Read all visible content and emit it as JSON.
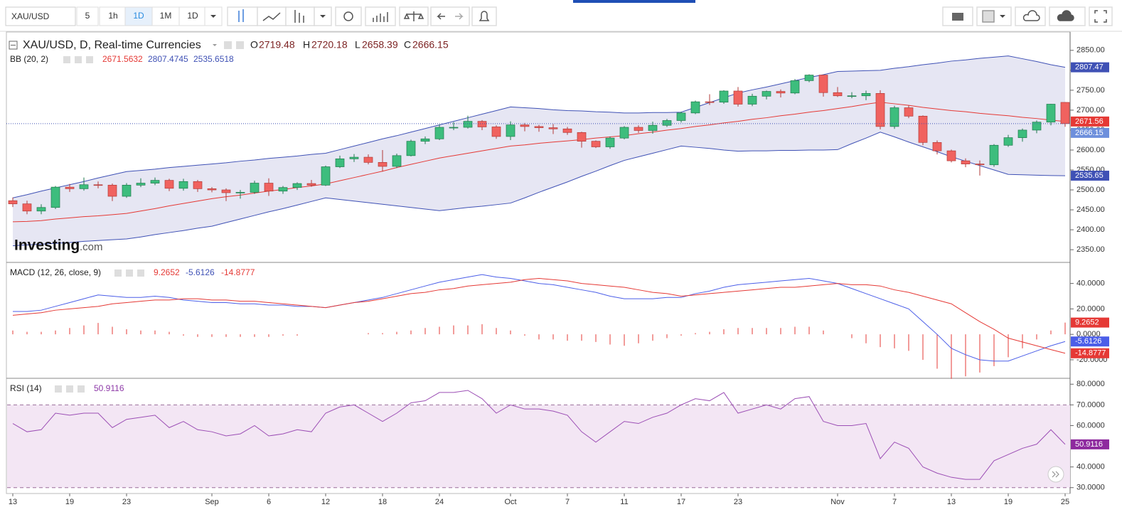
{
  "toolbar": {
    "symbol": "XAU/USD",
    "intervals": [
      "5",
      "1h",
      "1D",
      "1M",
      "1D"
    ],
    "active_interval": 2
  },
  "chart_data": [
    {
      "type": "candlestick",
      "title": "XAU/USD, D, Real-time Currencies",
      "ohlc_labels": [
        "O",
        "H",
        "L",
        "C"
      ],
      "watermark": [
        "Investing",
        ".com"
      ],
      "categories": [
        "13",
        null,
        null,
        null,
        "19",
        null,
        null,
        null,
        "23",
        null,
        null,
        null,
        null,
        null,
        "Sep",
        null,
        null,
        null,
        "6",
        null,
        null,
        null,
        "12",
        null,
        null,
        null,
        "18",
        null,
        null,
        null,
        "24",
        null,
        null,
        null,
        null,
        "Oct",
        null,
        null,
        null,
        "7",
        null,
        null,
        null,
        "11",
        null,
        null,
        null,
        "17",
        null,
        null,
        null,
        "23",
        null,
        null,
        null,
        null,
        null,
        null,
        "Nov",
        null,
        null,
        null,
        "7",
        null,
        null,
        null,
        "13",
        null,
        null,
        null,
        "19",
        null,
        null,
        null,
        "25"
      ],
      "open": [
        2473,
        2465,
        2447,
        2456,
        2507,
        2503,
        2513,
        2512,
        2484,
        2512,
        2517,
        2524,
        2504,
        2521,
        2503,
        2500,
        2493,
        2494,
        2517,
        2497,
        2506,
        2516,
        2512,
        2558,
        2578,
        2582,
        2569,
        2559,
        2586,
        2622,
        2628,
        2657,
        2657,
        2672,
        2658,
        2634,
        2663,
        2659,
        2656,
        2653,
        2644,
        2622,
        2608,
        2630,
        2657,
        2649,
        2662,
        2674,
        2693,
        2721,
        2720,
        2748,
        2715,
        2735,
        2747,
        2743,
        2774,
        2788,
        2744,
        2736,
        2736,
        2742,
        2659,
        2706,
        2685,
        2619,
        2598,
        2573,
        2565,
        2563,
        2612,
        2631,
        2650,
        2670,
        2719.48
      ],
      "high": [
        2481,
        2473,
        2464,
        2510,
        2515,
        2531,
        2521,
        2516,
        2517,
        2529,
        2531,
        2528,
        2528,
        2525,
        2507,
        2504,
        2500,
        2523,
        2529,
        2510,
        2519,
        2525,
        2561,
        2586,
        2590,
        2589,
        2600,
        2591,
        2626,
        2634,
        2664,
        2670,
        2686,
        2675,
        2662,
        2672,
        2668,
        2663,
        2665,
        2658,
        2646,
        2624,
        2634,
        2660,
        2662,
        2671,
        2678,
        2696,
        2724,
        2740,
        2750,
        2758,
        2741,
        2749,
        2752,
        2778,
        2790,
        2789,
        2758,
        2745,
        2749,
        2750,
        2711,
        2712,
        2687,
        2624,
        2601,
        2579,
        2574,
        2615,
        2638,
        2654,
        2674,
        2716,
        2720.18
      ],
      "low": [
        2457,
        2439,
        2439,
        2452,
        2495,
        2498,
        2504,
        2472,
        2480,
        2507,
        2512,
        2497,
        2498,
        2495,
        2494,
        2472,
        2478,
        2490,
        2485,
        2490,
        2500,
        2508,
        2510,
        2555,
        2570,
        2564,
        2546,
        2555,
        2584,
        2615,
        2625,
        2650,
        2654,
        2650,
        2628,
        2625,
        2647,
        2646,
        2640,
        2638,
        2606,
        2605,
        2603,
        2627,
        2643,
        2641,
        2658,
        2669,
        2690,
        2713,
        2716,
        2709,
        2710,
        2727,
        2732,
        2740,
        2770,
        2734,
        2733,
        2730,
        2725,
        2652,
        2653,
        2680,
        2612,
        2589,
        2569,
        2557,
        2536,
        2558,
        2608,
        2621,
        2642,
        2662,
        2658.39
      ],
      "close": [
        2465,
        2447,
        2456,
        2507,
        2503,
        2513,
        2512,
        2484,
        2512,
        2517,
        2524,
        2504,
        2521,
        2503,
        2500,
        2493,
        2494,
        2517,
        2497,
        2506,
        2516,
        2512,
        2558,
        2578,
        2582,
        2569,
        2559,
        2586,
        2622,
        2628,
        2657,
        2657,
        2672,
        2658,
        2634,
        2663,
        2659,
        2656,
        2653,
        2644,
        2622,
        2608,
        2630,
        2657,
        2649,
        2662,
        2674,
        2693,
        2721,
        2720,
        2748,
        2715,
        2735,
        2747,
        2743,
        2774,
        2788,
        2744,
        2736,
        2736,
        2742,
        2659,
        2706,
        2685,
        2619,
        2598,
        2573,
        2565,
        2563,
        2612,
        2631,
        2650,
        2670,
        2715,
        2666.15
      ],
      "up_color": "#3dbd7d",
      "down_color": "#f0625f",
      "close_line_color": "#3f51b5",
      "close_badge_color": "#6d8fdc",
      "ylim": [
        2320,
        2896
      ],
      "yticks": [
        {
          "value": 2350,
          "label": "2350.00"
        },
        {
          "value": 2400,
          "label": "2400.00"
        },
        {
          "value": 2450,
          "label": "2450.00"
        },
        {
          "value": 2500,
          "label": "2500.00"
        },
        {
          "value": 2550,
          "label": "2550.00"
        },
        {
          "value": 2600,
          "label": "2600.00"
        },
        {
          "value": 2650,
          "label": "2650.00"
        },
        {
          "value": 2700,
          "label": "2700.00"
        },
        {
          "value": 2750,
          "label": "2750.00"
        },
        {
          "value": 2800,
          "label": "2800.00"
        },
        {
          "value": 2850,
          "label": "2850.00"
        }
      ],
      "overlay": {
        "name": "BB (20, 2)",
        "fill": "#e6e6f3",
        "series": [
          {
            "color": "#e53935",
            "last_label": "2671.56",
            "values": [
              2420,
              2421,
              2423,
              2427,
              2430,
              2433,
              2435,
              2438,
              2441,
              2447,
              2453,
              2460,
              2466,
              2472,
              2478,
              2483,
              2487,
              2492,
              2497,
              2501,
              2506,
              2510,
              2515,
              2523,
              2531,
              2539,
              2547,
              2556,
              2564,
              2572,
              2580,
              2586,
              2592,
              2598,
              2604,
              2610,
              2613,
              2617,
              2620,
              2623,
              2626,
              2630,
              2633,
              2636,
              2641,
              2645,
              2650,
              2654,
              2659,
              2663,
              2668,
              2672,
              2677,
              2681,
              2686,
              2690,
              2695,
              2699,
              2704,
              2709,
              2715,
              2720,
              2716,
              2712,
              2707,
              2703,
              2699,
              2696,
              2692,
              2689,
              2686,
              2682,
              2679,
              2675,
              2671.5632
            ]
          },
          {
            "color": "#3f51b5",
            "last_label": "2807.47",
            "values": [
              2480,
              2488,
              2497,
              2505,
              2513,
              2521,
              2530,
              2538,
              2546,
              2549,
              2552,
              2556,
              2559,
              2562,
              2565,
              2568,
              2572,
              2575,
              2579,
              2582,
              2585,
              2589,
              2592,
              2601,
              2610,
              2619,
              2628,
              2636,
              2645,
              2654,
              2663,
              2672,
              2681,
              2690,
              2699,
              2708,
              2706,
              2704,
              2701,
              2699,
              2698,
              2696,
              2695,
              2693,
              2693,
              2694,
              2694,
              2695,
              2707,
              2719,
              2731,
              2743,
              2751,
              2758,
              2766,
              2774,
              2782,
              2789,
              2797,
              2798,
              2799,
              2800,
              2805,
              2809,
              2814,
              2818,
              2823,
              2826,
              2830,
              2833,
              2836,
              2829,
              2822,
              2814,
              2807.4745
            ]
          },
          {
            "color": "#3f51b5",
            "last_label": "2535.65",
            "values": [
              2360,
              2362,
              2364,
              2366,
              2368,
              2371,
              2373,
              2375,
              2377,
              2382,
              2388,
              2393,
              2398,
              2404,
              2409,
              2418,
              2427,
              2436,
              2445,
              2453,
              2462,
              2471,
              2480,
              2476,
              2472,
              2468,
              2464,
              2460,
              2456,
              2452,
              2448,
              2452,
              2456,
              2459,
              2463,
              2467,
              2480,
              2494,
              2507,
              2520,
              2534,
              2547,
              2561,
              2574,
              2583,
              2592,
              2601,
              2610,
              2607,
              2604,
              2600,
              2597,
              2598,
              2598,
              2599,
              2599,
              2600,
              2600,
              2601,
              2616,
              2630,
              2645,
              2633,
              2620,
              2608,
              2596,
              2583,
              2572,
              2561,
              2550,
              2539,
              2538,
              2537,
              2536,
              2535.6518
            ]
          }
        ]
      }
    },
    {
      "type": "macd",
      "title": "MACD (12, 26, close, 9)",
      "ylim": [
        -34,
        56
      ],
      "yticks": [
        {
          "value": -20,
          "label": "-20.0000"
        },
        {
          "value": 0,
          "label": "0.0000"
        },
        {
          "value": 20,
          "label": "20.0000"
        },
        {
          "value": 40,
          "label": "40.0000"
        }
      ],
      "histogram": {
        "color": "#e53935",
        "values": [
          3,
          2,
          2,
          3,
          5,
          7,
          9,
          6,
          4,
          3,
          3,
          2,
          -1,
          -2,
          -2,
          -2,
          -2,
          -2,
          -2,
          -1,
          -1,
          0,
          0,
          0,
          0,
          1,
          1,
          2,
          3,
          5,
          6,
          7,
          7,
          8,
          5,
          3,
          -1,
          -4,
          -4,
          -5,
          -5,
          -6,
          -8,
          -9,
          -7,
          -5,
          -3,
          -1,
          1,
          2,
          4,
          5,
          5,
          5,
          5,
          6,
          6,
          3,
          0,
          -3,
          -7,
          -10,
          -11,
          -13,
          -20,
          -27,
          -35,
          -33,
          -30,
          -25,
          -18,
          -11,
          -4,
          3,
          9.2652
        ]
      },
      "series": [
        {
          "color": "#4b5ee8",
          "values": [
            18,
            18,
            19,
            22,
            25,
            28,
            31,
            30,
            29,
            29,
            30,
            29,
            27,
            26,
            25,
            25,
            24,
            24,
            23,
            23,
            22,
            22,
            21,
            23,
            25,
            27,
            29,
            32,
            35,
            38,
            41,
            43,
            45,
            47,
            45,
            44,
            42,
            40,
            39,
            37,
            35,
            33,
            30,
            28,
            28,
            28,
            29,
            29,
            32,
            34,
            37,
            39,
            40,
            41,
            42,
            43,
            44,
            42,
            40,
            36,
            32,
            28,
            24,
            20,
            10,
            0,
            -11,
            -16,
            -20,
            -21,
            -21,
            -17,
            -13,
            -9,
            -5.6126
          ]
        },
        {
          "color": "#e53935",
          "values": [
            15,
            16,
            17,
            19,
            20,
            21,
            22,
            24,
            25,
            26,
            27,
            27,
            28,
            28,
            27,
            27,
            26,
            26,
            25,
            24,
            23,
            22,
            21,
            23,
            25,
            26,
            28,
            30,
            32,
            33,
            35,
            36,
            38,
            39,
            40,
            41,
            43,
            44,
            43,
            42,
            40,
            39,
            38,
            37,
            35,
            33,
            32,
            30,
            31,
            32,
            33,
            34,
            35,
            36,
            37,
            37,
            38,
            39,
            40,
            39,
            39,
            38,
            35,
            33,
            30,
            27,
            24,
            17,
            10,
            4,
            -3,
            -6,
            -9,
            -12,
            -14.8777
          ]
        }
      ]
    },
    {
      "type": "rsi",
      "title": "RSI (14)",
      "ylim": [
        27.5,
        82.5
      ],
      "yticks": [
        {
          "value": 30,
          "label": "30.0000"
        },
        {
          "value": 40,
          "label": "40.0000"
        },
        {
          "value": 60,
          "label": "60.0000"
        },
        {
          "value": 70,
          "label": "70.0000"
        },
        {
          "value": 80,
          "label": "80.0000"
        }
      ],
      "band": [
        30,
        70
      ],
      "band_fill": "#f3e6f4",
      "band_line_color": "#9a6f9a",
      "series": [
        {
          "color": "#9c4fb5",
          "values": [
            61,
            57,
            58,
            66,
            65,
            66,
            66,
            59,
            63,
            64,
            65,
            59,
            62,
            58,
            57,
            55,
            56,
            60,
            55,
            56,
            58,
            57,
            66,
            69,
            70,
            66,
            62,
            66,
            71,
            72,
            76,
            76,
            77,
            73,
            66,
            70,
            68,
            68,
            67,
            65,
            57,
            52,
            57,
            62,
            61,
            64,
            66,
            70,
            73,
            72,
            76,
            66,
            68,
            70,
            68,
            73,
            74,
            62,
            60,
            60,
            61,
            44,
            52,
            49,
            40,
            37,
            35,
            34,
            34,
            43,
            46,
            49,
            51,
            58,
            50.9116
          ]
        }
      ]
    }
  ]
}
